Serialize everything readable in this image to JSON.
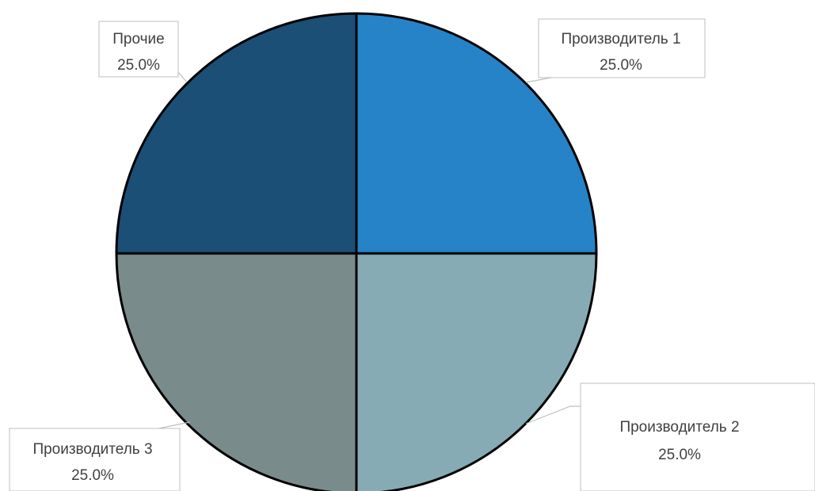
{
  "chart_data": {
    "type": "pie",
    "slices": [
      {
        "label": "Производитель 1",
        "value": 25.0,
        "percent_label": "25.0%",
        "color": "#2783C8"
      },
      {
        "label": "Производитель 2",
        "value": 25.0,
        "percent_label": "25.0%",
        "color": "#86ABB5"
      },
      {
        "label": "Производитель 3",
        "value": 25.0,
        "percent_label": "25.0%",
        "color": "#7A8B8C"
      },
      {
        "label": "Прочие",
        "value": 25.0,
        "percent_label": "25.0%",
        "color": "#1B4F76"
      }
    ],
    "start_angle": "12 o'clock",
    "direction": "clockwise",
    "slice_border_color": "#000000",
    "label_border_color": "#BFBFBF",
    "legend": "none"
  }
}
